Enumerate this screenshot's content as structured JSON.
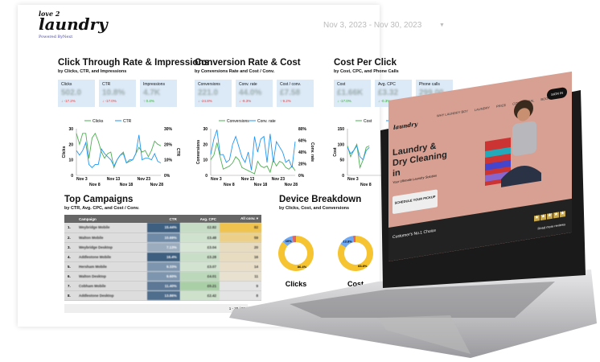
{
  "brand": {
    "logo_top": "love 2",
    "logo_main": "laundry",
    "powered": "Powered ByNext"
  },
  "date_range": "Nov 3, 2023 - Nov 30, 2023",
  "sections": [
    {
      "title": "Click Through Rate & Impressions",
      "subtitle": "by Clicks, CTR, and Impressions",
      "cards": [
        {
          "label": "Clicks",
          "value": "502.0",
          "delta": "↓ -17.2%",
          "dir": "down"
        },
        {
          "label": "CTR",
          "value": "10.8%",
          "delta": "↓ -17.0%",
          "dir": "down"
        },
        {
          "label": "Impressions",
          "value": "4.7K",
          "delta": "↑ 0.4%",
          "dir": "up"
        }
      ]
    },
    {
      "title": "Conversion Rate & Cost",
      "subtitle": "by Conversions Rate and Cost / Conv.",
      "cards": [
        {
          "label": "Conversions",
          "value": "221.0",
          "delta": "↓ -24.8%",
          "dir": "down"
        },
        {
          "label": "Conv. rate",
          "value": "44.0%",
          "delta": "↓ -9.3%",
          "dir": "down"
        },
        {
          "label": "Cost / conv.",
          "value": "£7.58",
          "delta": "↑ 9.2%",
          "dir": "down"
        }
      ]
    },
    {
      "title": "Cost Per Click",
      "subtitle": "by Cost, CPC, and Phone Calls",
      "cards": [
        {
          "label": "Cost",
          "value": "£1.66K",
          "delta": "↓ -17.0%",
          "dir": "up"
        },
        {
          "label": "Avg. CPC",
          "value": "£3.32",
          "delta": "↓ -0.3%",
          "dir": "up"
        },
        {
          "label": "Phone calls",
          "value": "299.00",
          "delta": "↓ -28.0%",
          "dir": "down"
        }
      ]
    }
  ],
  "chart_data": [
    {
      "type": "line",
      "x_ticks_top": [
        "Nov 3",
        "Nov 13",
        "Nov 23"
      ],
      "x_ticks_bottom": [
        "Nov 8",
        "Nov 18",
        "Nov 28"
      ],
      "ylabel": "Clicks",
      "y2label": "CTR",
      "ylim": [
        0,
        30
      ],
      "y2lim": [
        0,
        30
      ],
      "y_ticks": [
        "0",
        "10",
        "20",
        "30"
      ],
      "y2_ticks": [
        "0%",
        "10%",
        "20%",
        "30%"
      ],
      "series": [
        {
          "name": "Clicks",
          "color": "#4caf50",
          "axis": "left",
          "values": [
            27,
            20,
            27,
            27,
            11,
            24,
            27,
            22,
            15,
            11,
            14,
            15,
            5,
            10,
            13,
            15,
            8,
            9,
            10,
            14,
            18,
            15,
            16,
            12,
            16,
            22,
            20,
            19
          ]
        },
        {
          "name": "CTR",
          "color": "#2196f3",
          "axis": "right",
          "values": [
            16,
            13,
            16,
            21,
            7,
            5,
            7,
            7,
            17,
            14,
            12,
            10,
            6,
            10,
            13,
            14,
            8,
            10,
            10,
            14,
            26,
            10,
            11,
            11,
            10,
            14,
            9,
            8
          ]
        }
      ]
    },
    {
      "type": "line",
      "x_ticks_top": [
        "Nov 3",
        "Nov 13",
        "Nov 23"
      ],
      "x_ticks_bottom": [
        "Nov 8",
        "Nov 18",
        "Nov 28"
      ],
      "ylabel": "Conversions",
      "y2label": "Conv. rate",
      "ylim": [
        0,
        30
      ],
      "y2lim": [
        0,
        90
      ],
      "y_ticks": [
        "0",
        "10",
        "20",
        "30"
      ],
      "y2_ticks": [
        "0%",
        "20%",
        "40%",
        "60%",
        "80%"
      ],
      "series": [
        {
          "name": "Conversions",
          "color": "#4caf50",
          "axis": "left",
          "values": [
            10,
            13,
            21,
            12,
            4,
            5,
            6,
            8,
            12,
            10,
            5,
            4,
            3,
            2,
            1,
            9,
            6,
            5,
            6,
            2,
            10,
            6,
            9,
            8,
            5,
            4,
            6,
            3
          ]
        },
        {
          "name": "Conv. rate",
          "color": "#2196f3",
          "axis": "right",
          "values": [
            40,
            70,
            88,
            40,
            40,
            25,
            30,
            60,
            75,
            55,
            35,
            25,
            45,
            10,
            75,
            45,
            70,
            75,
            25,
            80,
            25,
            65,
            55,
            45,
            25,
            30,
            15,
            65
          ]
        }
      ]
    },
    {
      "type": "line",
      "x_ticks_top": [
        "Nov 3"
      ],
      "x_ticks_bottom": [
        "Nov 8"
      ],
      "ylabel": "Cost",
      "ylim": [
        0,
        150
      ],
      "y_ticks": [
        "0",
        "50",
        "100",
        "150"
      ],
      "series": [
        {
          "name": "Cost",
          "color": "#4caf50",
          "axis": "left",
          "values": [
            95,
            60,
            80,
            100,
            25,
            50,
            90,
            95
          ]
        },
        {
          "name": "Avg. CPC",
          "color": "#2196f3",
          "axis": "right",
          "values": [
            90,
            70,
            80,
            95,
            60,
            50,
            80,
            90
          ]
        }
      ]
    }
  ],
  "campaigns": {
    "title": "Top Campaigns",
    "subtitle": "by CTR, Avg. CPC, and Cost / Conv.",
    "headers": [
      "Campaign",
      "CTR",
      "Avg. CPC",
      "All conv. ▾"
    ],
    "rows": [
      [
        "1.",
        "Weybridge Mobile",
        "15.44%",
        "£2.82",
        "82"
      ],
      [
        "2.",
        "Walton Mobile",
        "10.69%",
        "£3.48",
        "59"
      ],
      [
        "3.",
        "Weybridge Desktop",
        "7.13%",
        "£3.04",
        "20"
      ],
      [
        "4.",
        "Addlestone Mobile",
        "16.4%",
        "£3.28",
        "16"
      ],
      [
        "5.",
        "Hersham Mobile",
        "9.33%",
        "£3.07",
        "14"
      ],
      [
        "6.",
        "Walton Desktop",
        "9.60%",
        "£4.01",
        "11"
      ],
      [
        "7.",
        "Cobham Mobile",
        "11.40%",
        "£0.21",
        "9"
      ],
      [
        "8.",
        "Addlestone Desktop",
        "13.86%",
        "£2.42",
        "8"
      ]
    ],
    "pagination": "1 - 20 / 55"
  },
  "devices": {
    "title": "Device Breakdown",
    "subtitle": "by Clicks, Cost, and Conversions",
    "donuts": [
      {
        "label": "Clicks",
        "slices": [
          {
            "pct": 86.4,
            "color": "#f6c431",
            "text": "86.4%"
          },
          {
            "pct": 10,
            "color": "#6ea8f2",
            "text": "10%"
          },
          {
            "pct": 3.6,
            "color": "#e06666",
            "text": ""
          }
        ]
      },
      {
        "label": "Cost",
        "slices": [
          {
            "pct": 83.8,
            "color": "#f6c431",
            "text": "83.8%"
          },
          {
            "pct": 13.8,
            "color": "#6ea8f2",
            "text": "13.8%"
          },
          {
            "pct": 2.4,
            "color": "#e06666",
            "text": ""
          }
        ]
      }
    ]
  },
  "website": {
    "nav": [
      "WHY LAUNDRY BOY",
      "LAUNDRY",
      "PRICE",
      "COMMERCIAL",
      "BOOK NOW"
    ],
    "signin": "SIGN IN",
    "hero": "Laundry & Dry Cleaning in",
    "tagline": "Your Ultimate Laundry Solution",
    "cta": "SCHEDULE YOUR PICKUP",
    "band_title": "Customer's No.1 Choice",
    "reviews": "Read more reviews"
  }
}
